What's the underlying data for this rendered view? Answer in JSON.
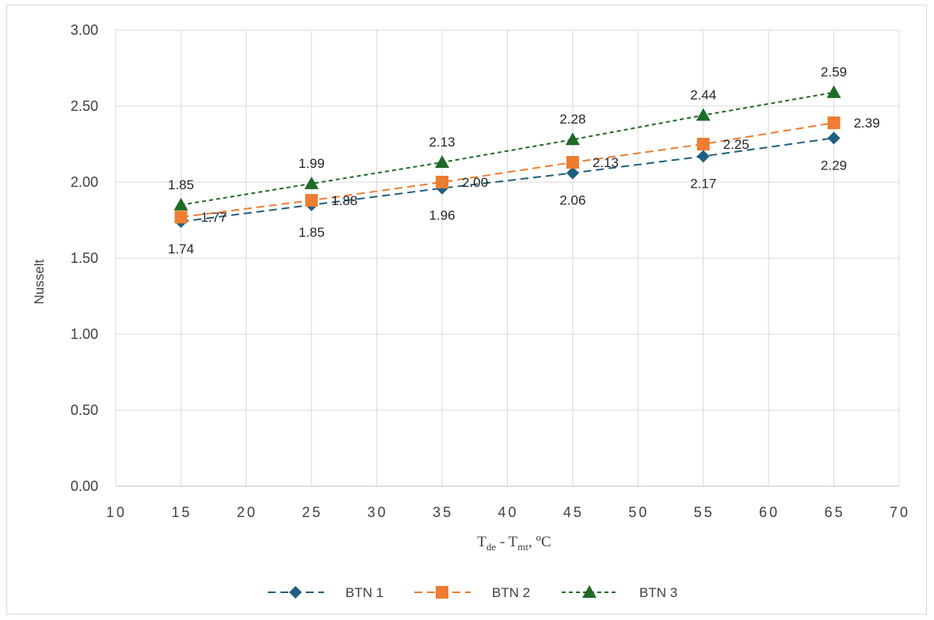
{
  "chart_data": {
    "type": "line",
    "x": [
      15,
      25,
      35,
      45,
      55,
      65
    ],
    "series": [
      {
        "name": "BTN 1",
        "values": [
          1.74,
          1.85,
          1.96,
          2.06,
          2.17,
          2.29
        ],
        "labels": [
          "1.74",
          "1.85",
          "1.96",
          "2.06",
          "2.17",
          "2.29"
        ],
        "color": "#1f5f7f",
        "marker": "diamond",
        "dash": "long-dash"
      },
      {
        "name": "BTN 2",
        "values": [
          1.77,
          1.88,
          2.0,
          2.13,
          2.25,
          2.39
        ],
        "labels": [
          "1.77",
          "1.88",
          "2.00",
          "2.13",
          "2.25",
          "2.39"
        ],
        "color": "#ed7d31",
        "marker": "square",
        "dash": "long-dash"
      },
      {
        "name": "BTN 3",
        "values": [
          1.85,
          1.99,
          2.13,
          2.28,
          2.44,
          2.59
        ],
        "labels": [
          "1.85",
          "1.99",
          "2.13",
          "2.28",
          "2.44",
          "2.59"
        ],
        "color": "#1e6b26",
        "marker": "triangle",
        "dash": "short-dash"
      }
    ],
    "xlim": [
      10,
      70
    ],
    "ylim": [
      0,
      3
    ],
    "x_ticks": [
      "10",
      "15",
      "20",
      "25",
      "30",
      "35",
      "40",
      "45",
      "50",
      "55",
      "60",
      "65",
      "70"
    ],
    "y_ticks": [
      "0.00",
      "0.50",
      "1.00",
      "1.50",
      "2.00",
      "2.50",
      "3.00"
    ],
    "ylabel": "Nusselt",
    "xlabel": {
      "t1": "T",
      "sub1": "de",
      "mid": " - T",
      "sub2": "mt",
      "tail": ", ",
      "sup": "o",
      "unit": "C"
    },
    "grid": true,
    "legend_position": "bottom"
  }
}
